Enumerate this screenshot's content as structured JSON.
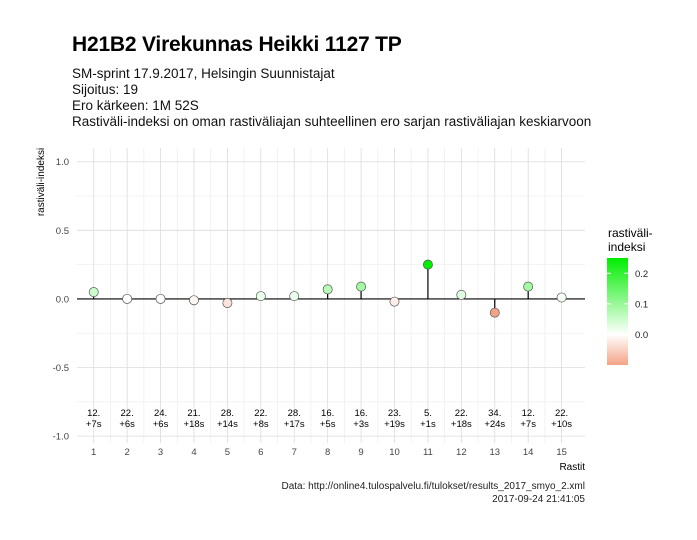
{
  "title": "H21B2 Virekunnas Heikki 1127 TP",
  "subtitle": [
    "SM-sprint 17.9.2017, Helsingin Suunnistajat",
    "Sijoitus: 19",
    "Ero kärkeen: 1M 52S",
    "Rastiväli-indeksi on oman rastiväliajan suhteellinen ero sarjan rastiväliajan keskiarvoon"
  ],
  "caption": {
    "source": "Data: http://online4.tulospalvelu.fi/tulokset/results_2017_smyo_2.xml",
    "timestamp": "2017-09-24 21:41:05"
  },
  "chart_data": {
    "type": "scatter",
    "xlabel": "Rastit",
    "ylabel": "rastiväli-indeksi",
    "xlim": [
      0.5,
      15.7
    ],
    "ylim": [
      -1.05,
      1.1
    ],
    "yticks": [
      -1.0,
      -0.5,
      0.0,
      0.5,
      1.0
    ],
    "ytick_labels": [
      "-1.0",
      "-0.5",
      "0.0",
      "0.5",
      "1.0"
    ],
    "grid": true,
    "x": [
      1,
      2,
      3,
      4,
      5,
      6,
      7,
      8,
      9,
      10,
      11,
      12,
      13,
      14,
      15
    ],
    "values": [
      0.05,
      0.0,
      0.0,
      -0.01,
      -0.03,
      0.02,
      0.02,
      0.07,
      0.09,
      -0.02,
      0.25,
      0.03,
      -0.1,
      0.09,
      0.01
    ],
    "rank_labels": [
      "12.",
      "22.",
      "24.",
      "21.",
      "28.",
      "22.",
      "28.",
      "16.",
      "16.",
      "23.",
      "5.",
      "22.",
      "34.",
      "12.",
      "22."
    ],
    "diff_labels": [
      "+7s",
      "+6s",
      "+6s",
      "+18s",
      "+14s",
      "+8s",
      "+17s",
      "+5s",
      "+3s",
      "+19s",
      "+1s",
      "+18s",
      "+24s",
      "+7s",
      "+10s"
    ],
    "legend": {
      "title_lines": [
        "rastiväli-",
        "indeksi"
      ],
      "ticks": [
        0.2,
        0.1,
        0.0
      ],
      "tick_labels": [
        "0.2",
        "0.1",
        "0.0"
      ],
      "range": [
        -0.1,
        0.25
      ],
      "placement": "right"
    },
    "colors": {
      "high": "#00ee00",
      "mid": "#ffffff",
      "low": "#f4a386",
      "axis_zero": "#000000",
      "grid_major": "#dcdcdc",
      "grid_minor": "#efefef"
    }
  }
}
